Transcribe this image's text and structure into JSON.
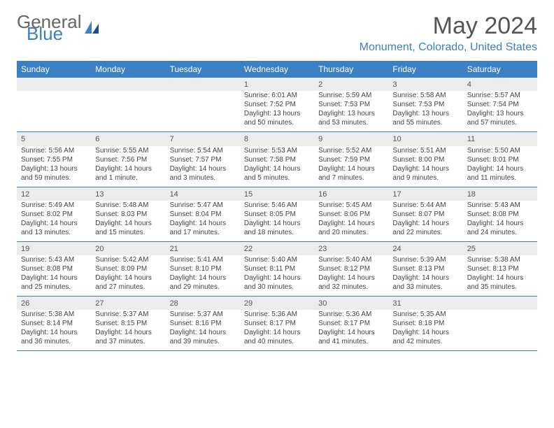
{
  "logo": {
    "line1": "General",
    "line2": "Blue"
  },
  "title": "May 2024",
  "location": "Monument, Colorado, United States",
  "colors": {
    "accent": "#3b7fc4",
    "header_text": "#ffffff",
    "daynum_bg": "#ececec",
    "text": "#444444",
    "title_text": "#555555"
  },
  "dayHeaders": [
    "Sunday",
    "Monday",
    "Tuesday",
    "Wednesday",
    "Thursday",
    "Friday",
    "Saturday"
  ],
  "weeks": [
    [
      null,
      null,
      null,
      {
        "n": "1",
        "sr": "Sunrise: 6:01 AM",
        "ss": "Sunset: 7:52 PM",
        "d1": "Daylight: 13 hours",
        "d2": "and 50 minutes."
      },
      {
        "n": "2",
        "sr": "Sunrise: 5:59 AM",
        "ss": "Sunset: 7:53 PM",
        "d1": "Daylight: 13 hours",
        "d2": "and 53 minutes."
      },
      {
        "n": "3",
        "sr": "Sunrise: 5:58 AM",
        "ss": "Sunset: 7:53 PM",
        "d1": "Daylight: 13 hours",
        "d2": "and 55 minutes."
      },
      {
        "n": "4",
        "sr": "Sunrise: 5:57 AM",
        "ss": "Sunset: 7:54 PM",
        "d1": "Daylight: 13 hours",
        "d2": "and 57 minutes."
      }
    ],
    [
      {
        "n": "5",
        "sr": "Sunrise: 5:56 AM",
        "ss": "Sunset: 7:55 PM",
        "d1": "Daylight: 13 hours",
        "d2": "and 59 minutes."
      },
      {
        "n": "6",
        "sr": "Sunrise: 5:55 AM",
        "ss": "Sunset: 7:56 PM",
        "d1": "Daylight: 14 hours",
        "d2": "and 1 minute."
      },
      {
        "n": "7",
        "sr": "Sunrise: 5:54 AM",
        "ss": "Sunset: 7:57 PM",
        "d1": "Daylight: 14 hours",
        "d2": "and 3 minutes."
      },
      {
        "n": "8",
        "sr": "Sunrise: 5:53 AM",
        "ss": "Sunset: 7:58 PM",
        "d1": "Daylight: 14 hours",
        "d2": "and 5 minutes."
      },
      {
        "n": "9",
        "sr": "Sunrise: 5:52 AM",
        "ss": "Sunset: 7:59 PM",
        "d1": "Daylight: 14 hours",
        "d2": "and 7 minutes."
      },
      {
        "n": "10",
        "sr": "Sunrise: 5:51 AM",
        "ss": "Sunset: 8:00 PM",
        "d1": "Daylight: 14 hours",
        "d2": "and 9 minutes."
      },
      {
        "n": "11",
        "sr": "Sunrise: 5:50 AM",
        "ss": "Sunset: 8:01 PM",
        "d1": "Daylight: 14 hours",
        "d2": "and 11 minutes."
      }
    ],
    [
      {
        "n": "12",
        "sr": "Sunrise: 5:49 AM",
        "ss": "Sunset: 8:02 PM",
        "d1": "Daylight: 14 hours",
        "d2": "and 13 minutes."
      },
      {
        "n": "13",
        "sr": "Sunrise: 5:48 AM",
        "ss": "Sunset: 8:03 PM",
        "d1": "Daylight: 14 hours",
        "d2": "and 15 minutes."
      },
      {
        "n": "14",
        "sr": "Sunrise: 5:47 AM",
        "ss": "Sunset: 8:04 PM",
        "d1": "Daylight: 14 hours",
        "d2": "and 17 minutes."
      },
      {
        "n": "15",
        "sr": "Sunrise: 5:46 AM",
        "ss": "Sunset: 8:05 PM",
        "d1": "Daylight: 14 hours",
        "d2": "and 18 minutes."
      },
      {
        "n": "16",
        "sr": "Sunrise: 5:45 AM",
        "ss": "Sunset: 8:06 PM",
        "d1": "Daylight: 14 hours",
        "d2": "and 20 minutes."
      },
      {
        "n": "17",
        "sr": "Sunrise: 5:44 AM",
        "ss": "Sunset: 8:07 PM",
        "d1": "Daylight: 14 hours",
        "d2": "and 22 minutes."
      },
      {
        "n": "18",
        "sr": "Sunrise: 5:43 AM",
        "ss": "Sunset: 8:08 PM",
        "d1": "Daylight: 14 hours",
        "d2": "and 24 minutes."
      }
    ],
    [
      {
        "n": "19",
        "sr": "Sunrise: 5:43 AM",
        "ss": "Sunset: 8:08 PM",
        "d1": "Daylight: 14 hours",
        "d2": "and 25 minutes."
      },
      {
        "n": "20",
        "sr": "Sunrise: 5:42 AM",
        "ss": "Sunset: 8:09 PM",
        "d1": "Daylight: 14 hours",
        "d2": "and 27 minutes."
      },
      {
        "n": "21",
        "sr": "Sunrise: 5:41 AM",
        "ss": "Sunset: 8:10 PM",
        "d1": "Daylight: 14 hours",
        "d2": "and 29 minutes."
      },
      {
        "n": "22",
        "sr": "Sunrise: 5:40 AM",
        "ss": "Sunset: 8:11 PM",
        "d1": "Daylight: 14 hours",
        "d2": "and 30 minutes."
      },
      {
        "n": "23",
        "sr": "Sunrise: 5:40 AM",
        "ss": "Sunset: 8:12 PM",
        "d1": "Daylight: 14 hours",
        "d2": "and 32 minutes."
      },
      {
        "n": "24",
        "sr": "Sunrise: 5:39 AM",
        "ss": "Sunset: 8:13 PM",
        "d1": "Daylight: 14 hours",
        "d2": "and 33 minutes."
      },
      {
        "n": "25",
        "sr": "Sunrise: 5:38 AM",
        "ss": "Sunset: 8:13 PM",
        "d1": "Daylight: 14 hours",
        "d2": "and 35 minutes."
      }
    ],
    [
      {
        "n": "26",
        "sr": "Sunrise: 5:38 AM",
        "ss": "Sunset: 8:14 PM",
        "d1": "Daylight: 14 hours",
        "d2": "and 36 minutes."
      },
      {
        "n": "27",
        "sr": "Sunrise: 5:37 AM",
        "ss": "Sunset: 8:15 PM",
        "d1": "Daylight: 14 hours",
        "d2": "and 37 minutes."
      },
      {
        "n": "28",
        "sr": "Sunrise: 5:37 AM",
        "ss": "Sunset: 8:16 PM",
        "d1": "Daylight: 14 hours",
        "d2": "and 39 minutes."
      },
      {
        "n": "29",
        "sr": "Sunrise: 5:36 AM",
        "ss": "Sunset: 8:17 PM",
        "d1": "Daylight: 14 hours",
        "d2": "and 40 minutes."
      },
      {
        "n": "30",
        "sr": "Sunrise: 5:36 AM",
        "ss": "Sunset: 8:17 PM",
        "d1": "Daylight: 14 hours",
        "d2": "and 41 minutes."
      },
      {
        "n": "31",
        "sr": "Sunrise: 5:35 AM",
        "ss": "Sunset: 8:18 PM",
        "d1": "Daylight: 14 hours",
        "d2": "and 42 minutes."
      },
      null
    ]
  ]
}
